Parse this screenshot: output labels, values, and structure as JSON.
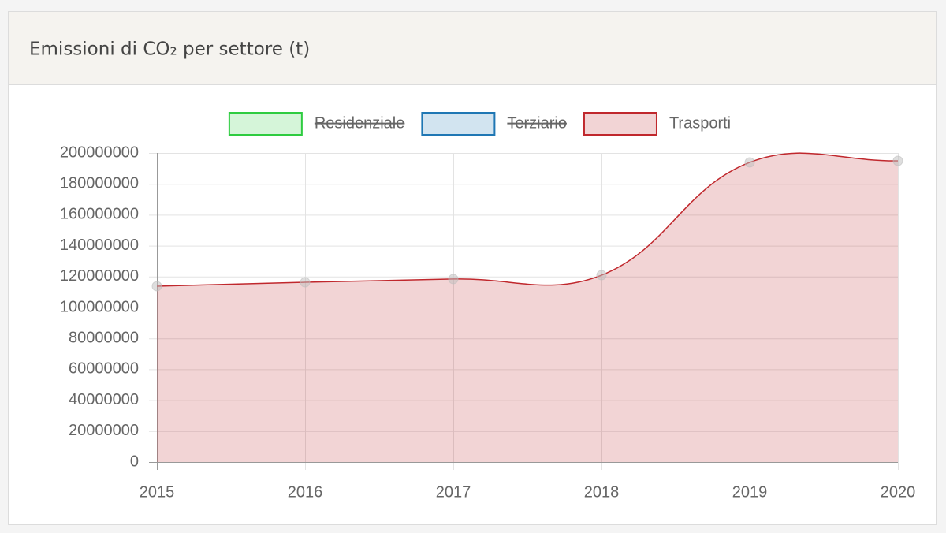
{
  "chart_data": {
    "type": "line",
    "title": "Emissioni di CO₂ per settore (t)",
    "categories": [
      "2015",
      "2016",
      "2017",
      "2018",
      "2019",
      "2020"
    ],
    "series": [
      {
        "name": "Residenziale",
        "color": "#2ecc40",
        "hidden": true
      },
      {
        "name": "Terziario",
        "color": "#1f77b4",
        "hidden": true
      },
      {
        "name": "Trasporti",
        "color": "#c0282d",
        "hidden": false,
        "values": [
          113800000,
          116300000,
          118400000,
          120900000,
          193900000,
          194900000
        ]
      }
    ],
    "ylim": [
      0,
      200000000
    ],
    "yticks": [
      0,
      20000000,
      40000000,
      60000000,
      80000000,
      100000000,
      120000000,
      140000000,
      160000000,
      180000000,
      200000000
    ],
    "grid": true,
    "fill": true,
    "legend": "top"
  }
}
